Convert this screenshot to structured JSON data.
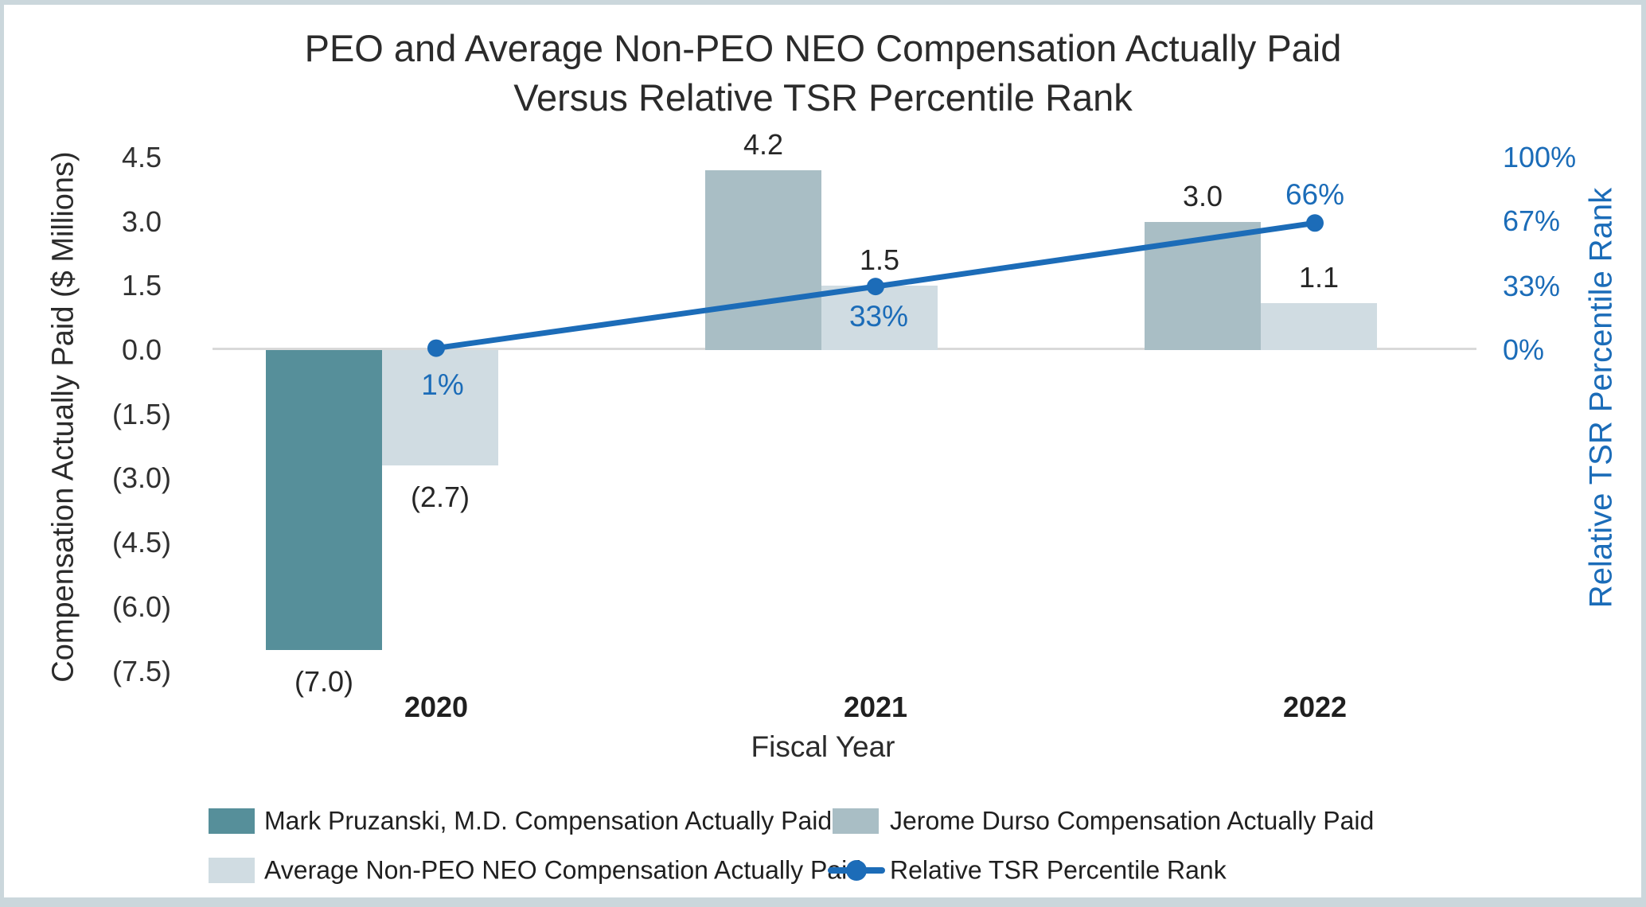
{
  "title": {
    "line1": "PEO and Average Non-PEO NEO Compensation Actually Paid",
    "line2": "Versus Relative TSR Percentile Rank"
  },
  "chart_data": {
    "type": "combo-bar-line",
    "title": "PEO and Average Non-PEO NEO Compensation Actually Paid Versus Relative TSR Percentile Rank",
    "categories": [
      "2020",
      "2021",
      "2022"
    ],
    "x_axis_title": "Fiscal Year",
    "left_axis": {
      "title": "Compensation Actually Paid ($ Millions)",
      "tick_labels": [
        "4.5",
        "3.0",
        "1.5",
        "0.0",
        "(1.5)",
        "(3.0)",
        "(4.5)",
        "(6.0)",
        "(7.5)"
      ],
      "tick_values": [
        4.5,
        3.0,
        1.5,
        0.0,
        -1.5,
        -3.0,
        -4.5,
        -6.0,
        -7.5
      ],
      "range": [
        -7.5,
        4.5
      ]
    },
    "right_axis": {
      "title": "Relative TSR Percentile Rank",
      "tick_labels": [
        "100%",
        "67%",
        "33%",
        "0%"
      ],
      "tick_values": [
        100,
        67,
        33,
        0
      ],
      "range": [
        0,
        100
      ]
    },
    "gridlines": "zero-line-only",
    "bar_series": [
      {
        "key": "mark-pruzanski",
        "name": "Mark Pruzanski, M.D. Compensation Actually Paid",
        "color": "#568F9A",
        "values": [
          -7.0,
          null,
          null
        ],
        "value_labels": [
          "(7.0)",
          null,
          null
        ]
      },
      {
        "key": "jerome-durso",
        "name": "Jerome Durso Compensation Actually Paid",
        "color": "#A9BEC5",
        "values": [
          null,
          4.2,
          3.0
        ],
        "value_labels": [
          null,
          "4.2",
          "3.0"
        ]
      },
      {
        "key": "avg-non-peo-neo",
        "name": "Average Non-PEO NEO Compensation Actually Paid",
        "color": "#D0DCE2",
        "values": [
          -2.7,
          1.5,
          1.1
        ],
        "value_labels": [
          "(2.7)",
          "1.5",
          "1.1"
        ]
      }
    ],
    "line_series": {
      "key": "relative-tsr",
      "name": "Relative TSR Percentile Rank",
      "color": "#1C6CB8",
      "values": [
        1,
        33,
        66
      ],
      "value_labels": [
        "1%",
        "33%",
        "66%"
      ]
    },
    "colors": {
      "gridline": "#D9D9D9",
      "page_border": "#CBD7DC"
    }
  },
  "legend": {
    "items": [
      {
        "type": "swatch",
        "color": "#568F9A",
        "label": "Mark Pruzanski, M.D. Compensation Actually Paid"
      },
      {
        "type": "swatch",
        "color": "#A9BEC5",
        "label": "Jerome Durso Compensation Actually Paid"
      },
      {
        "type": "swatch",
        "color": "#D0DCE2",
        "label": "Average Non-PEO NEO Compensation Actually Paid"
      },
      {
        "type": "line-dot",
        "color": "#1C6CB8",
        "label": "Relative TSR Percentile Rank"
      }
    ]
  }
}
